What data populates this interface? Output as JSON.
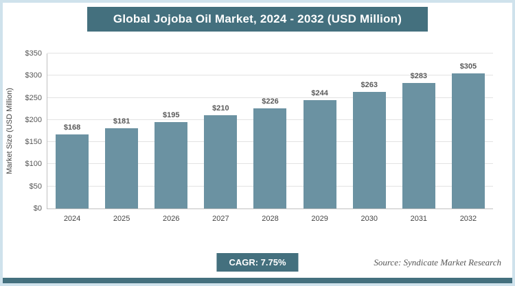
{
  "chart_data": {
    "type": "bar",
    "title": "Global Jojoba Oil Market, 2024 - 2032 (USD Million)",
    "categories": [
      "2024",
      "2025",
      "2026",
      "2027",
      "2028",
      "2029",
      "2030",
      "2031",
      "2032"
    ],
    "values": [
      168,
      181,
      195,
      210,
      226,
      244,
      263,
      283,
      305
    ],
    "value_labels": [
      "$168",
      "$181",
      "$195",
      "$210",
      "$226",
      "$244",
      "$263",
      "$283",
      "$305"
    ],
    "xlabel": "",
    "ylabel": "Market Size (USD Million)",
    "ylim": [
      0,
      350
    ],
    "ytick_step": 50,
    "ytick_labels": [
      "$0",
      "$50",
      "$100",
      "$150",
      "$200",
      "$250",
      "$300",
      "$350"
    ],
    "grid": true,
    "legend": "none",
    "bar_color": "#6b92a2"
  },
  "footer": {
    "cagr_label": "CAGR: 7.75%",
    "source": "Source: Syndicate Market Research"
  },
  "colors": {
    "banner_bg": "#44707e",
    "frame_border": "#cfe2ec",
    "bar": "#6b92a2",
    "gridline": "#e2e2e2"
  }
}
